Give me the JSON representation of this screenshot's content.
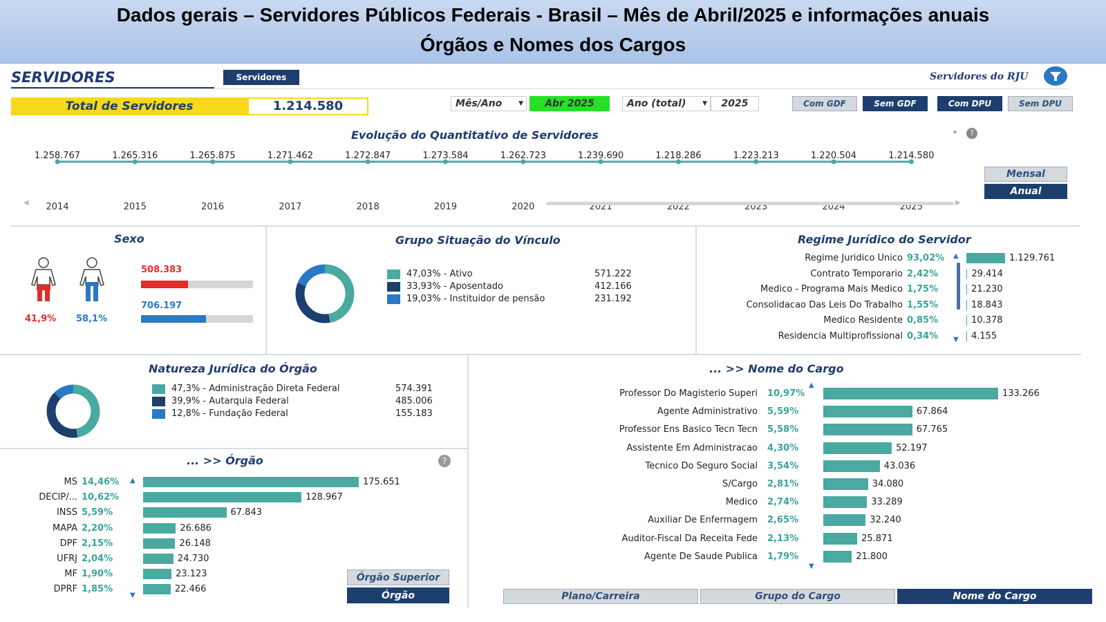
{
  "banner": {
    "line1": "Dados gerais – Servidores Públicos Federais - Brasil – Mês de Abril/2025 e informações anuais",
    "line2": "Órgãos e Nomes dos Cargos"
  },
  "header": {
    "title": "SERVIDORES",
    "tab_label": "Servidores",
    "rju_label": "Servidores do RJU"
  },
  "total": {
    "label": "Total de Servidores",
    "value": "1.214.580"
  },
  "filters": {
    "mes_ano_label": "Mês/Ano",
    "mes_ano_value": "Abr 2025",
    "ano_label": "Ano (total)",
    "ano_value": "2025",
    "buttons": [
      "Com GDF",
      "Sem GDF",
      "Com DPU",
      "Sem DPU"
    ]
  },
  "evolucao": {
    "title": "Evolução do Quantitativo de Servidores",
    "mensal_label": "Mensal",
    "anual_label": "Anual",
    "points": [
      {
        "year": "2014",
        "value": "1.258.767"
      },
      {
        "year": "2015",
        "value": "1.265.316"
      },
      {
        "year": "2016",
        "value": "1.265.875"
      },
      {
        "year": "2017",
        "value": "1.271.462"
      },
      {
        "year": "2018",
        "value": "1.272.847"
      },
      {
        "year": "2019",
        "value": "1.273.584"
      },
      {
        "year": "2020",
        "value": "1.262.723"
      },
      {
        "year": "2021",
        "value": "1.239.690"
      },
      {
        "year": "2022",
        "value": "1.218.286"
      },
      {
        "year": "2023",
        "value": "1.223.213"
      },
      {
        "year": "2024",
        "value": "1.220.504"
      },
      {
        "year": "2025",
        "value": "1.214.580"
      }
    ]
  },
  "sexo": {
    "title": "Sexo",
    "female_value": "508.383",
    "male_value": "706.197",
    "female_pct": "41,9%",
    "male_pct": "58,1%",
    "female_share": 0.419,
    "male_share": 0.581
  },
  "vinculo": {
    "title": "Grupo Situação do Vínculo",
    "items": [
      {
        "label": "47,03% - Ativo",
        "value": "571.222",
        "share": 0.4703,
        "color": "#4aa9a0"
      },
      {
        "label": "33,93% - Aposentado",
        "value": "412.166",
        "share": 0.3393,
        "color": "#1c3f6e"
      },
      {
        "label": "19,03% - Instituidor de pensão",
        "value": "231.192",
        "share": 0.1903,
        "color": "#2a79c4"
      }
    ]
  },
  "regime": {
    "title": "Regime Jurídico do Servidor",
    "items": [
      {
        "label": "Regime Juridico Unico",
        "pct": "93,02%",
        "value": "1.129.761",
        "share": 0.9302
      },
      {
        "label": "Contrato Temporario",
        "pct": "2,42%",
        "value": "29.414",
        "share": 0.0242
      },
      {
        "label": "Medico - Programa Mais Medico",
        "pct": "1,75%",
        "value": "21.230",
        "share": 0.0175
      },
      {
        "label": "Consolidacao Das Leis Do Trabalho",
        "pct": "1,55%",
        "value": "18.843",
        "share": 0.0155
      },
      {
        "label": "Medico Residente",
        "pct": "0,85%",
        "value": "10.378",
        "share": 0.0085
      },
      {
        "label": "Residencia Multiprofissional",
        "pct": "0,34%",
        "value": "4.155",
        "share": 0.0034
      }
    ]
  },
  "natureza": {
    "title": "Natureza Jurídica do Órgão",
    "items": [
      {
        "label": "47,3% - Administração Direta Federal",
        "value": "574.391",
        "share": 0.473,
        "color": "#4aa9a0"
      },
      {
        "label": "39,9% - Autarquia Federal",
        "value": "485.006",
        "share": 0.399,
        "color": "#1c3f6e"
      },
      {
        "label": "12,8% - Fundação Federal",
        "value": "155.183",
        "share": 0.128,
        "color": "#2a79c4"
      }
    ]
  },
  "orgao": {
    "title": "... >> Órgão",
    "btn_superior": "Órgão Superior",
    "btn_orgao": "Órgão",
    "items": [
      {
        "label": "MS",
        "pct": "14,46%",
        "value": "175.651",
        "n": 175651
      },
      {
        "label": "DECIP/...",
        "pct": "10,62%",
        "value": "128.967",
        "n": 128967
      },
      {
        "label": "INSS",
        "pct": "5,59%",
        "value": "67.843",
        "n": 67843
      },
      {
        "label": "MAPA",
        "pct": "2,20%",
        "value": "26.686",
        "n": 26686
      },
      {
        "label": "DPF",
        "pct": "2,15%",
        "value": "26.148",
        "n": 26148
      },
      {
        "label": "UFRJ",
        "pct": "2,04%",
        "value": "24.730",
        "n": 24730
      },
      {
        "label": "MF",
        "pct": "1,90%",
        "value": "23.123",
        "n": 23123
      },
      {
        "label": "DPRF",
        "pct": "1,85%",
        "value": "22.466",
        "n": 22466
      }
    ]
  },
  "cargo": {
    "title": "... >> Nome do Cargo",
    "tabs": [
      "Plano/Carreira",
      "Grupo do Cargo",
      "Nome do Cargo"
    ],
    "items": [
      {
        "label": "Professor Do Magisterio Superi",
        "pct": "10,97%",
        "value": "133.266",
        "n": 133266
      },
      {
        "label": "Agente Administrativo",
        "pct": "5,59%",
        "value": "67.864",
        "n": 67864
      },
      {
        "label": "Professor Ens Basico Tecn Tecn",
        "pct": "5,58%",
        "value": "67.765",
        "n": 67765
      },
      {
        "label": "Assistente Em Administracao",
        "pct": "4,30%",
        "value": "52.197",
        "n": 52197
      },
      {
        "label": "Tecnico Do Seguro Social",
        "pct": "3,54%",
        "value": "43.036",
        "n": 43036
      },
      {
        "label": "S/Cargo",
        "pct": "2,81%",
        "value": "34.080",
        "n": 34080
      },
      {
        "label": "Medico",
        "pct": "2,74%",
        "value": "33.289",
        "n": 33289
      },
      {
        "label": "Auxiliar De Enfermagem",
        "pct": "2,65%",
        "value": "32.240",
        "n": 32240
      },
      {
        "label": "Auditor-Fiscal Da Receita Fede",
        "pct": "2,13%",
        "value": "25.871",
        "n": 25871
      },
      {
        "label": "Agente De Saude Publica",
        "pct": "1,79%",
        "value": "21.800",
        "n": 21800
      }
    ]
  }
}
